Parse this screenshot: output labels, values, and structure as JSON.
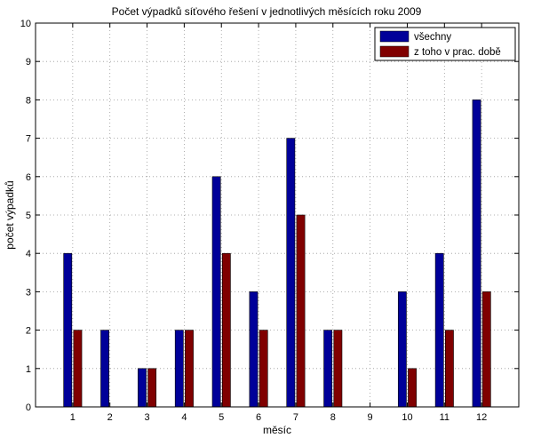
{
  "chart_data": {
    "type": "bar",
    "title": "Počet výpadků síťového řešení v jednotlivých měsících roku 2009",
    "xlabel": "měsíc",
    "ylabel": "počet výpadků",
    "categories": [
      "1",
      "2",
      "3",
      "4",
      "5",
      "6",
      "7",
      "8",
      "9",
      "10",
      "11",
      "12"
    ],
    "series": [
      {
        "name": "všechny",
        "color": "#000099",
        "values": [
          4,
          2,
          1,
          2,
          6,
          3,
          7,
          2,
          0,
          3,
          4,
          8
        ]
      },
      {
        "name": "z toho v prac. době",
        "color": "#800000",
        "values": [
          2,
          0,
          1,
          2,
          4,
          2,
          5,
          2,
          0,
          1,
          2,
          3
        ]
      }
    ],
    "ylim": [
      0,
      10
    ],
    "yticks": [
      "0",
      "1",
      "2",
      "3",
      "4",
      "5",
      "6",
      "7",
      "8",
      "9",
      "10"
    ],
    "grid": true,
    "legend_position": "top-right"
  }
}
